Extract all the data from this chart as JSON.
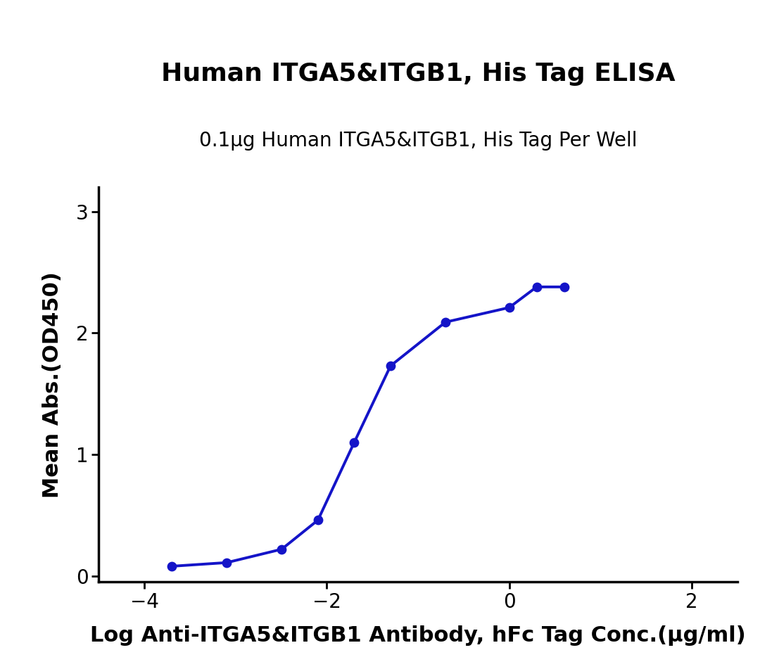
{
  "title": "Human ITGA5&ITGB1, His Tag ELISA",
  "subtitle": "0.1µg Human ITGA5&ITGB1, His Tag Per Well",
  "xlabel": "Log Anti-ITGA5&ITGB1 Antibody, hFc Tag Conc.(µg/ml)",
  "ylabel": "Mean Abs.(OD450)",
  "xlim": [
    -4.5,
    2.5
  ],
  "ylim": [
    -0.05,
    3.2
  ],
  "xticks": [
    -4,
    -2,
    0,
    2
  ],
  "yticks": [
    0,
    1,
    2,
    3
  ],
  "x_data": [
    -3.699,
    -3.097,
    -2.495,
    -2.097,
    -1.699,
    -1.301,
    -0.699,
    0,
    0.301,
    0.602
  ],
  "y_data": [
    0.08,
    0.11,
    0.22,
    0.46,
    1.1,
    1.73,
    2.09,
    2.21,
    2.38,
    2.38
  ],
  "curve_color": "#1414c8",
  "dot_color": "#1414c8",
  "dot_size": 80,
  "line_width": 2.8,
  "title_fontsize": 26,
  "subtitle_fontsize": 20,
  "axis_label_fontsize": 22,
  "tick_fontsize": 20,
  "background_color": "#ffffff"
}
